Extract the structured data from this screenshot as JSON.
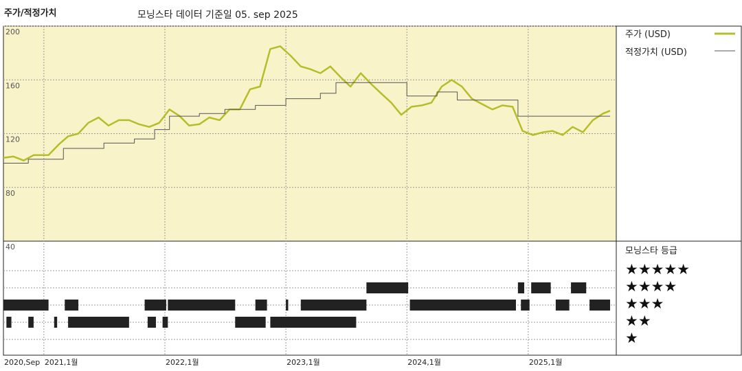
{
  "header": {
    "title": "주가/적정가치",
    "subtitle": "모닝스타 데이터 기준일 05. sep 2025"
  },
  "colors": {
    "price": "#b5bd2a",
    "fair": "#555555",
    "panel_bg": "#f8f3c9",
    "grid": "#888888"
  },
  "chart_data": {
    "type": "line",
    "legend": {
      "price": "주가 (USD)",
      "fair": "적정가치 (USD)",
      "rating_title": "모닝스타 등급",
      "stars": [
        "★★★★★",
        "★★★★",
        "★★★",
        "★★",
        "★"
      ]
    },
    "y_ticks": [
      "200",
      "160",
      "120",
      "80",
      "40"
    ],
    "ylim": [
      40,
      200
    ],
    "x_ticks": [
      {
        "date": "2020-09-01",
        "label": "2020,Sep"
      },
      {
        "date": "2021-01-01",
        "label": "2021,1월"
      },
      {
        "date": "2022-01-01",
        "label": "2022,1월"
      },
      {
        "date": "2023-01-01",
        "label": "2023,1월"
      },
      {
        "date": "2024-01-01",
        "label": "2024,1월"
      },
      {
        "date": "2025-01-01",
        "label": "2025,1월"
      }
    ],
    "xlim": [
      "2020-09-01",
      "2025-09-05"
    ],
    "series": [
      {
        "name": "주가 (USD)",
        "points": [
          [
            "2020-09-01",
            102
          ],
          [
            "2020-10-01",
            103
          ],
          [
            "2020-11-01",
            100
          ],
          [
            "2020-12-01",
            104
          ],
          [
            "2021-01-15",
            104
          ],
          [
            "2021-02-15",
            112
          ],
          [
            "2021-03-15",
            118
          ],
          [
            "2021-04-15",
            120
          ],
          [
            "2021-05-15",
            128
          ],
          [
            "2021-06-15",
            132
          ],
          [
            "2021-07-15",
            126
          ],
          [
            "2021-08-15",
            130
          ],
          [
            "2021-09-15",
            130
          ],
          [
            "2021-10-15",
            127
          ],
          [
            "2021-11-15",
            125
          ],
          [
            "2021-12-15",
            128
          ],
          [
            "2022-01-15",
            138
          ],
          [
            "2022-02-15",
            133
          ],
          [
            "2022-03-15",
            126
          ],
          [
            "2022-04-15",
            127
          ],
          [
            "2022-05-15",
            132
          ],
          [
            "2022-06-15",
            130
          ],
          [
            "2022-07-15",
            138
          ],
          [
            "2022-08-15",
            138
          ],
          [
            "2022-09-15",
            153
          ],
          [
            "2022-10-15",
            155
          ],
          [
            "2022-11-15",
            183
          ],
          [
            "2022-12-15",
            185
          ],
          [
            "2023-01-15",
            178
          ],
          [
            "2023-02-15",
            170
          ],
          [
            "2023-03-15",
            168
          ],
          [
            "2023-04-15",
            165
          ],
          [
            "2023-05-15",
            170
          ],
          [
            "2023-06-15",
            162
          ],
          [
            "2023-07-15",
            155
          ],
          [
            "2023-08-15",
            165
          ],
          [
            "2023-09-15",
            157
          ],
          [
            "2023-10-15",
            150
          ],
          [
            "2023-11-15",
            143
          ],
          [
            "2023-12-15",
            134
          ],
          [
            "2024-01-15",
            140
          ],
          [
            "2024-02-15",
            141
          ],
          [
            "2024-03-15",
            143
          ],
          [
            "2024-04-15",
            155
          ],
          [
            "2024-05-15",
            160
          ],
          [
            "2024-06-15",
            155
          ],
          [
            "2024-07-15",
            146
          ],
          [
            "2024-08-15",
            142
          ],
          [
            "2024-09-15",
            138
          ],
          [
            "2024-10-15",
            141
          ],
          [
            "2024-11-15",
            140
          ],
          [
            "2024-12-15",
            122
          ],
          [
            "2025-01-15",
            119
          ],
          [
            "2025-02-15",
            121
          ],
          [
            "2025-03-15",
            122
          ],
          [
            "2025-04-15",
            119
          ],
          [
            "2025-05-15",
            125
          ],
          [
            "2025-06-15",
            121
          ],
          [
            "2025-07-15",
            130
          ],
          [
            "2025-08-15",
            135
          ],
          [
            "2025-09-05",
            137
          ]
        ]
      },
      {
        "name": "적정가치 (USD)",
        "points": [
          [
            "2020-09-01",
            98
          ],
          [
            "2020-11-15",
            98
          ],
          [
            "2020-11-15",
            101
          ],
          [
            "2021-03-01",
            101
          ],
          [
            "2021-03-01",
            109
          ],
          [
            "2021-07-01",
            109
          ],
          [
            "2021-07-01",
            113
          ],
          [
            "2021-10-01",
            113
          ],
          [
            "2021-10-01",
            116
          ],
          [
            "2021-12-01",
            116
          ],
          [
            "2021-12-01",
            123
          ],
          [
            "2022-01-15",
            123
          ],
          [
            "2022-01-15",
            133
          ],
          [
            "2022-04-15",
            133
          ],
          [
            "2022-04-15",
            135
          ],
          [
            "2022-07-01",
            135
          ],
          [
            "2022-07-01",
            138
          ],
          [
            "2022-10-01",
            138
          ],
          [
            "2022-10-01",
            141
          ],
          [
            "2023-01-01",
            141
          ],
          [
            "2023-01-01",
            146
          ],
          [
            "2023-04-15",
            146
          ],
          [
            "2023-04-15",
            150
          ],
          [
            "2023-06-01",
            150
          ],
          [
            "2023-06-01",
            158
          ],
          [
            "2024-01-01",
            158
          ],
          [
            "2024-01-01",
            148
          ],
          [
            "2024-04-01",
            148
          ],
          [
            "2024-04-01",
            151
          ],
          [
            "2024-06-01",
            151
          ],
          [
            "2024-06-01",
            145
          ],
          [
            "2024-12-01",
            145
          ],
          [
            "2024-12-01",
            133
          ],
          [
            "2025-09-05",
            133
          ]
        ]
      }
    ],
    "rating": {
      "rows": [
        {
          "stars": 5,
          "ranges": []
        },
        {
          "stars": 4,
          "ranges": [
            [
              "2023-09-01",
              "2024-01-05"
            ],
            [
              "2024-12-01",
              "2024-12-20"
            ],
            [
              "2025-01-10",
              "2025-03-10"
            ],
            [
              "2025-05-10",
              "2025-06-25"
            ]
          ]
        },
        {
          "stars": 3,
          "ranges": [
            [
              "2020-09-01",
              "2021-01-15"
            ],
            [
              "2021-03-05",
              "2021-04-15"
            ],
            [
              "2021-11-01",
              "2022-01-05"
            ],
            [
              "2022-01-10",
              "2022-08-01"
            ],
            [
              "2022-10-01",
              "2022-11-05"
            ],
            [
              "2023-01-01",
              "2023-01-08"
            ],
            [
              "2023-02-15",
              "2023-09-01"
            ],
            [
              "2024-01-10",
              "2024-11-25"
            ],
            [
              "2024-12-10",
              "2025-01-05"
            ],
            [
              "2025-03-25",
              "2025-05-05"
            ],
            [
              "2025-07-05",
              "2025-09-05"
            ]
          ]
        },
        {
          "stars": 2,
          "ranges": [
            [
              "2020-09-10",
              "2020-09-25"
            ],
            [
              "2020-11-15",
              "2020-12-01"
            ],
            [
              "2021-02-01",
              "2021-02-10"
            ],
            [
              "2021-03-15",
              "2021-09-15"
            ],
            [
              "2021-11-10",
              "2021-12-05"
            ],
            [
              "2021-12-25",
              "2022-01-10"
            ],
            [
              "2022-08-01",
              "2022-11-01"
            ],
            [
              "2022-11-15",
              "2023-08-01"
            ]
          ]
        },
        {
          "stars": 1,
          "ranges": []
        }
      ]
    }
  }
}
